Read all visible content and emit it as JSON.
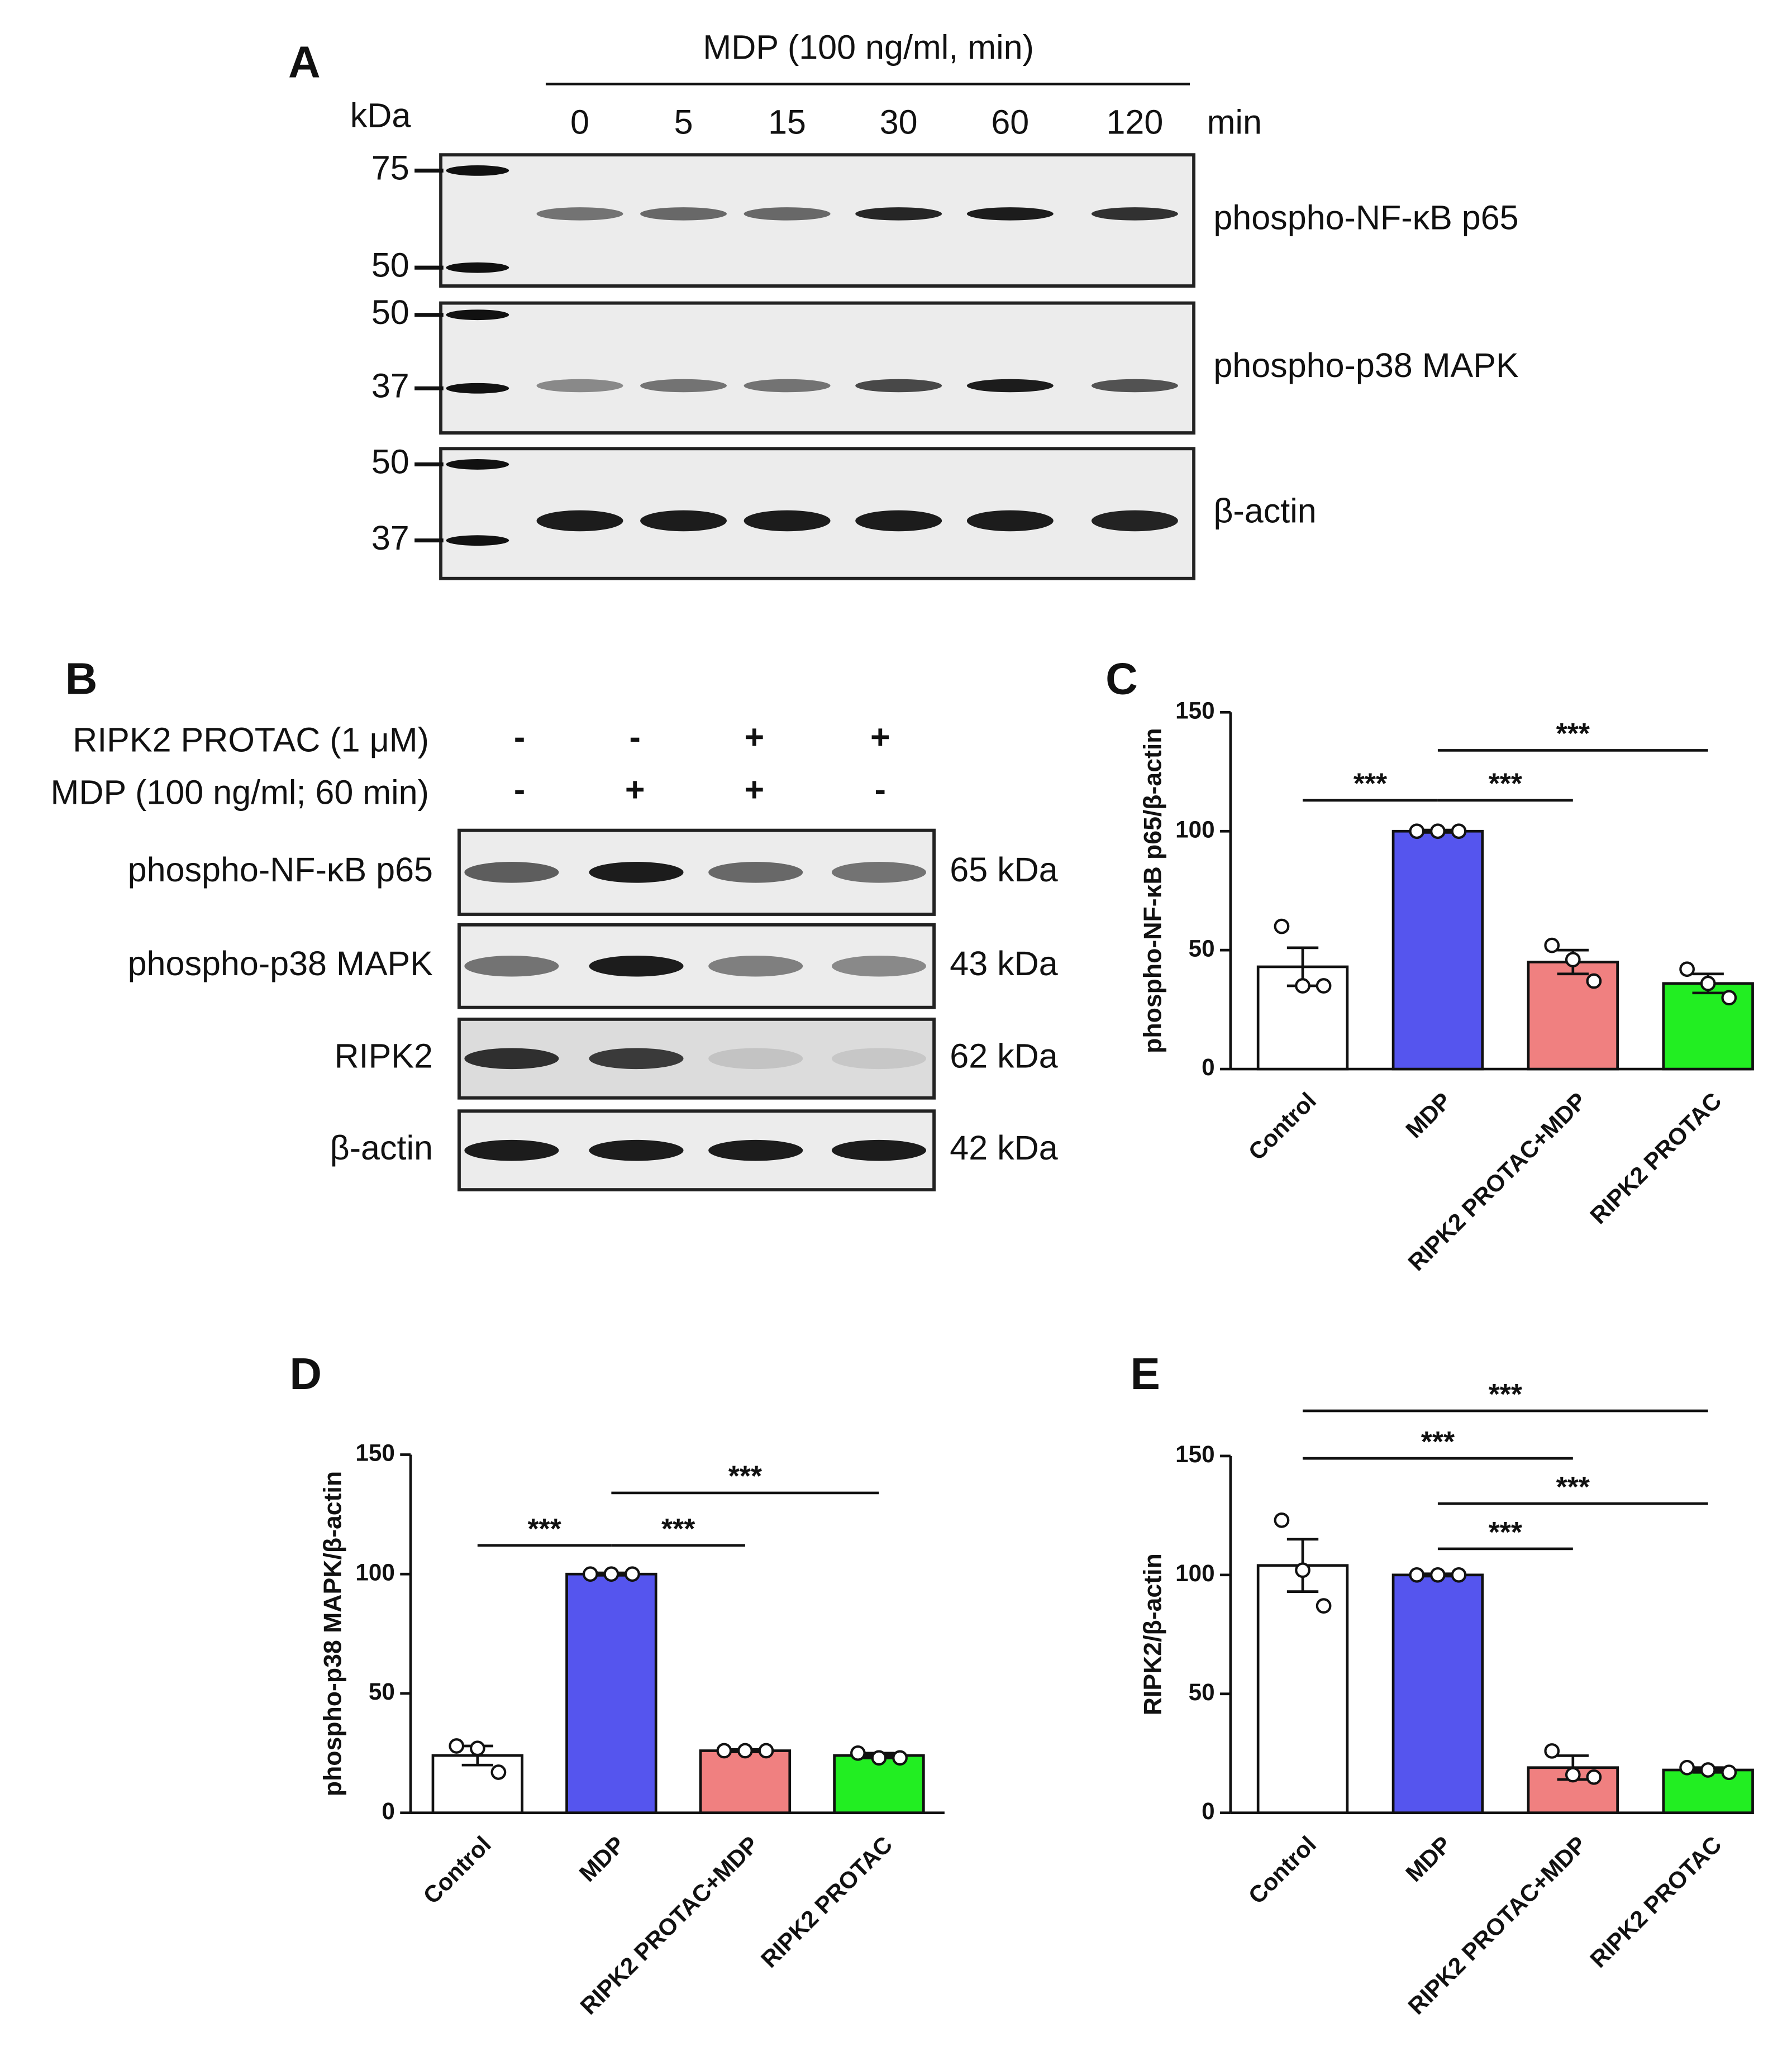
{
  "panel_a": {
    "label": "A",
    "treatment": "MDP (100 ng/ml, min)",
    "kda_label": "kDa",
    "time_points": [
      0,
      5,
      15,
      30,
      60,
      120
    ],
    "time_unit": "min",
    "blots": [
      {
        "name": "phospho-NF-κB p65",
        "markers": [
          75,
          50
        ]
      },
      {
        "name": "phospho-p38 MAPK",
        "markers": [
          50,
          37
        ]
      },
      {
        "name": "β-actin",
        "markers": [
          50,
          37
        ]
      }
    ]
  },
  "panel_b": {
    "label": "B",
    "conditions": [
      {
        "name": "RIPK2 PROTAC (1 μM)",
        "signs": [
          "-",
          "-",
          "+",
          "+"
        ]
      },
      {
        "name": "MDP (100 ng/ml; 60 min)",
        "signs": [
          "-",
          "+",
          "+",
          "-"
        ]
      }
    ],
    "blots": [
      {
        "name": "phospho-NF-κB p65",
        "size": "65 kDa"
      },
      {
        "name": "phospho-p38 MAPK",
        "size": "43 kDa"
      },
      {
        "name": "RIPK2",
        "size": "62 kDa"
      },
      {
        "name": "β-actin",
        "size": "42 kDa"
      }
    ]
  },
  "chart_data": [
    {
      "type": "bar",
      "panel": "C",
      "ylabel": "phospho-NF-κB p65/β-actin",
      "categories": [
        "Control",
        "MDP",
        "RIPK2 PROTAC+MDP",
        "RIPK2 PROTAC"
      ],
      "values": [
        43,
        100,
        45,
        36
      ],
      "errors": [
        8,
        0.5,
        5,
        4
      ],
      "points": [
        [
          60,
          35,
          35
        ],
        [
          100,
          100,
          100
        ],
        [
          52,
          46,
          37
        ],
        [
          42,
          36,
          30
        ]
      ],
      "colors": [
        "#ffffff",
        "#5555ee",
        "#f08080",
        "#22ee22"
      ],
      "ylim": [
        0,
        150
      ],
      "yticks": [
        0,
        50,
        100,
        150
      ],
      "annotations": [
        {
          "text": "***",
          "from": "Control",
          "to": "MDP",
          "y": 113
        },
        {
          "text": "***",
          "from": "MDP",
          "to": "RIPK2 PROTAC+MDP",
          "y": 113
        },
        {
          "text": "***",
          "from": "MDP",
          "to": "RIPK2 PROTAC",
          "y": 134
        }
      ]
    },
    {
      "type": "bar",
      "panel": "D",
      "ylabel": "phospho-p38 MAPK/β-actin",
      "categories": [
        "Control",
        "MDP",
        "RIPK2 PROTAC+MDP",
        "RIPK2 PROTAC"
      ],
      "values": [
        24,
        100,
        26,
        24
      ],
      "errors": [
        4,
        0.5,
        0.5,
        1
      ],
      "points": [
        [
          28,
          27,
          17
        ],
        [
          100,
          100,
          100
        ],
        [
          26,
          26,
          26
        ],
        [
          25,
          23,
          23
        ]
      ],
      "colors": [
        "#ffffff",
        "#5555ee",
        "#f08080",
        "#22ee22"
      ],
      "ylim": [
        0,
        150
      ],
      "yticks": [
        0,
        50,
        100,
        150
      ],
      "annotations": [
        {
          "text": "***",
          "from": "Control",
          "to": "MDP",
          "y": 112
        },
        {
          "text": "***",
          "from": "MDP",
          "to": "RIPK2 PROTAC+MDP",
          "y": 112
        },
        {
          "text": "***",
          "from": "MDP",
          "to": "RIPK2 PROTAC",
          "y": 134
        }
      ]
    },
    {
      "type": "bar",
      "panel": "E",
      "ylabel": "RIPK2/β-actin",
      "categories": [
        "Control",
        "MDP",
        "RIPK2 PROTAC+MDP",
        "RIPK2 PROTAC"
      ],
      "values": [
        104,
        100,
        19,
        18
      ],
      "errors": [
        11,
        0.5,
        5,
        1
      ],
      "points": [
        [
          123,
          102,
          87
        ],
        [
          100,
          100,
          100
        ],
        [
          26,
          16,
          15
        ],
        [
          19,
          18,
          17
        ]
      ],
      "colors": [
        "#ffffff",
        "#5555ee",
        "#f08080",
        "#22ee22"
      ],
      "ylim": [
        0,
        150
      ],
      "yticks": [
        0,
        50,
        100,
        150
      ],
      "annotations": [
        {
          "text": "***",
          "from": "Control",
          "to": "RIPK2 PROTAC",
          "y": 169
        },
        {
          "text": "***",
          "from": "Control",
          "to": "RIPK2 PROTAC+MDP",
          "y": 149
        },
        {
          "text": "***",
          "from": "MDP",
          "to": "RIPK2 PROTAC",
          "y": 130
        },
        {
          "text": "***",
          "from": "MDP",
          "to": "RIPK2 PROTAC+MDP",
          "y": 111
        }
      ]
    }
  ]
}
